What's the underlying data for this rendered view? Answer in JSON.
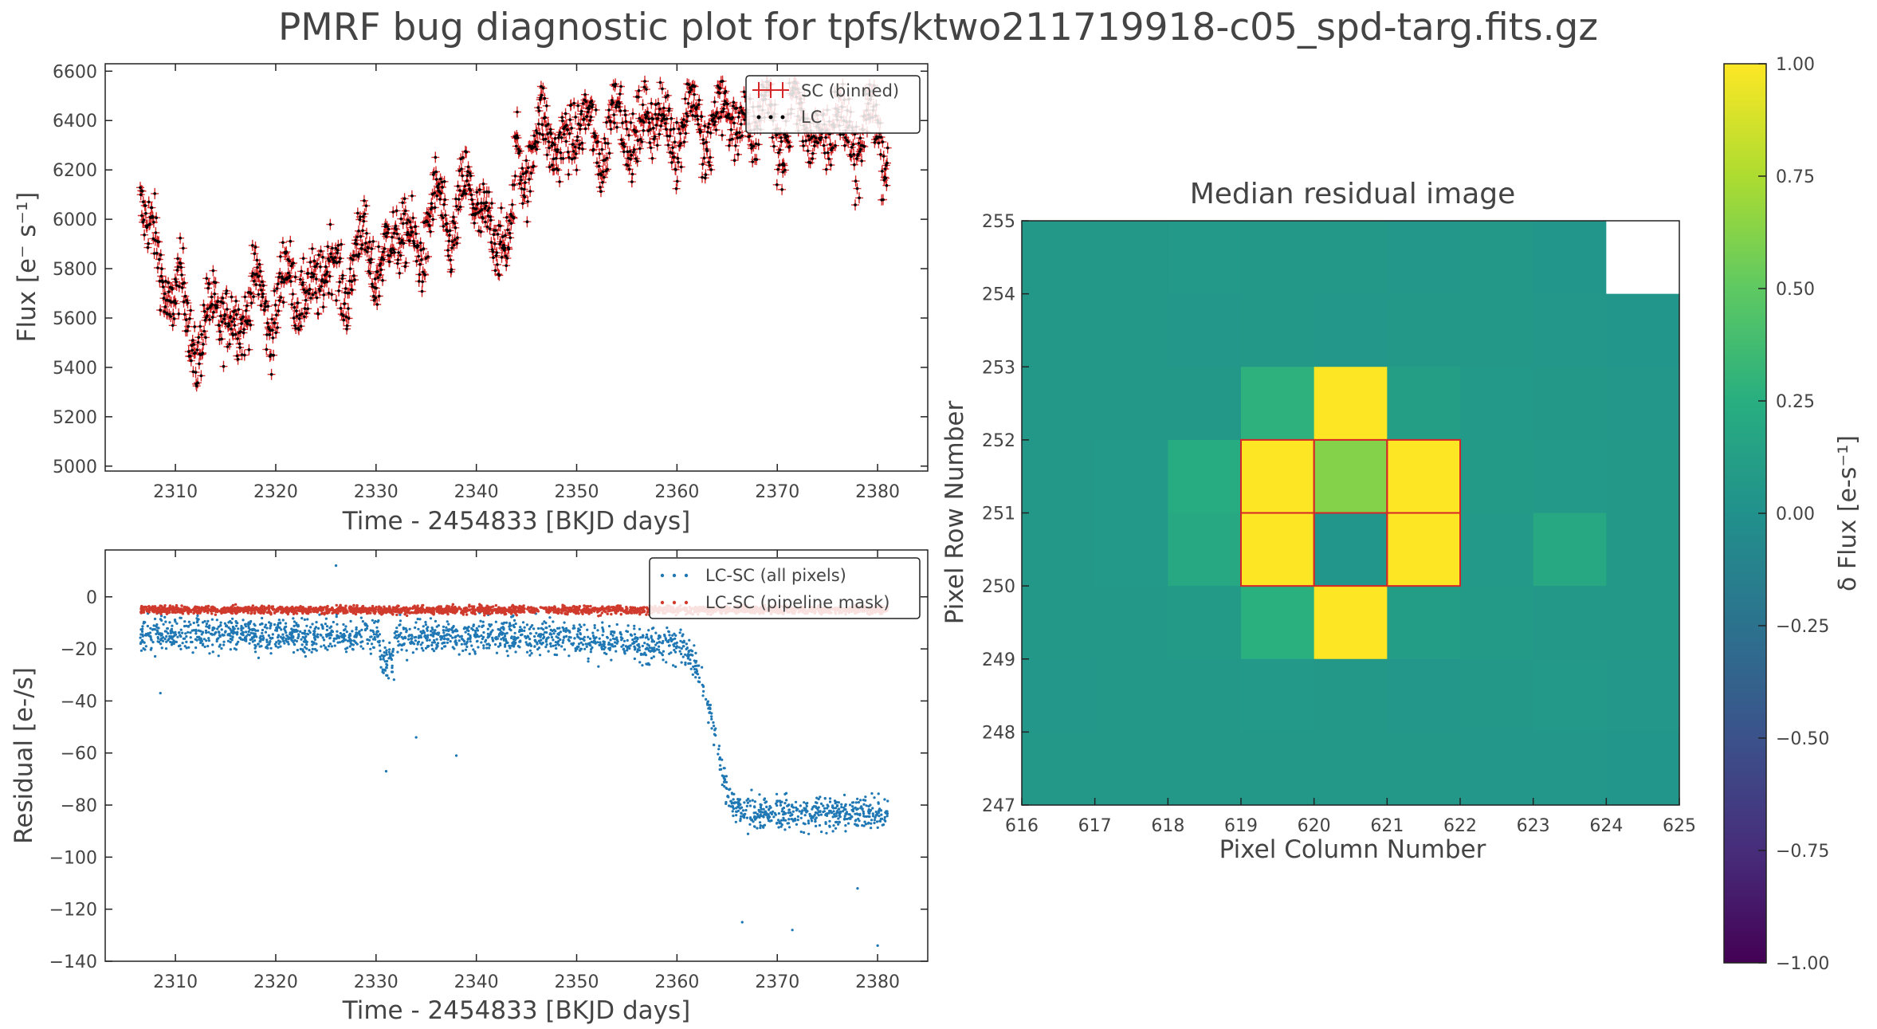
{
  "figure": {
    "title": "PMRF bug diagnostic plot for tpfs/ktwo211719918-c05_spd-targ.fits.gz"
  },
  "colors": {
    "sc": "#d62728",
    "lc": "#000000",
    "all_pixels": "#1f77b4",
    "pipeline": "#d03a2c",
    "text": "#444444",
    "mask_outline": "#d62728"
  },
  "chart_data": [
    {
      "id": "flux",
      "type": "scatter",
      "title": "",
      "xlabel": "Time - 2454833 [BKJD days]",
      "ylabel": "Flux [e⁻ s⁻¹]",
      "xlim": [
        2303,
        2385
      ],
      "ylim": [
        4980,
        6630
      ],
      "xticks": [
        2310,
        2320,
        2330,
        2340,
        2350,
        2360,
        2370,
        2380
      ],
      "yticks": [
        5000,
        5200,
        5400,
        5600,
        5800,
        6000,
        6200,
        6400,
        6600
      ],
      "legend": [
        "SC (binned)",
        "LC"
      ],
      "legend_loc": "upper right",
      "trend": {
        "x": [
          2306.5,
          2308,
          2310,
          2312,
          2315,
          2318,
          2321,
          2325,
          2330,
          2335,
          2339,
          2342,
          2343.5,
          2344,
          2348,
          2352,
          2356,
          2360,
          2365,
          2370,
          2375,
          2381
        ],
        "y": [
          6050,
          5900,
          5650,
          5550,
          5600,
          5650,
          5700,
          5760,
          5860,
          5950,
          6080,
          5980,
          5800,
          6280,
          6330,
          6350,
          6380,
          6390,
          6400,
          6400,
          6370,
          6330
        ]
      }
    },
    {
      "id": "residual",
      "type": "scatter",
      "title": "",
      "xlabel": "Time - 2454833 [BKJD days]",
      "ylabel": "Residual [e-/s]",
      "xlim": [
        2303,
        2385
      ],
      "ylim": [
        -140,
        18
      ],
      "xticks": [
        2310,
        2320,
        2330,
        2340,
        2350,
        2360,
        2370,
        2380
      ],
      "yticks": [
        0,
        -20,
        -40,
        -60,
        -80,
        -100,
        -120,
        -140
      ],
      "series": [
        {
          "name": "LC-SC (all pixels)",
          "x": [
            2306.5,
            2330,
            2345,
            2360,
            2361.5,
            2363,
            2364,
            2365,
            2366,
            2367,
            2381
          ],
          "y": [
            -14,
            -15,
            -15,
            -19,
            -22,
            -38,
            -58,
            -75,
            -82,
            -83,
            -83
          ]
        },
        {
          "name": "LC-SC (pipeline mask)",
          "x": [
            2306.5,
            2381
          ],
          "y": [
            -5,
            -5
          ]
        }
      ],
      "outliers": {
        "x": [
          2326,
          2331,
          2334,
          2338,
          2366.5,
          2371.5,
          2378,
          2380,
          2308.5
        ],
        "y": [
          12,
          -67,
          -54,
          -61,
          -125,
          -128,
          -112,
          -134,
          -37
        ]
      },
      "legend_loc": "upper right"
    },
    {
      "id": "residual-image",
      "type": "heatmap",
      "title": "Median residual image",
      "xlabel": "Pixel Column Number",
      "ylabel": "Pixel Row Number",
      "xlim": [
        616,
        625
      ],
      "ylim": [
        247,
        255
      ],
      "xticks": [
        616,
        617,
        618,
        619,
        620,
        621,
        622,
        623,
        624,
        625
      ],
      "yticks": [
        247,
        248,
        249,
        250,
        251,
        252,
        253,
        254,
        255
      ],
      "colormap": "viridis",
      "clim": [
        -1.0,
        1.0
      ],
      "colorbar_label": "δ Flux [e-s⁻¹]",
      "colorbar_ticks": [
        "1.00",
        "0.75",
        "0.50",
        "0.25",
        "0.00",
        "−0.25",
        "−0.50",
        "−0.75",
        "−1.00"
      ],
      "colorbar_tick_values": [
        1.0,
        0.75,
        0.5,
        0.25,
        0.0,
        -0.25,
        -0.5,
        -0.75,
        -1.0
      ],
      "rows_top_to_bottom": [
        254,
        253,
        252,
        251,
        250,
        249,
        248,
        247
      ],
      "columns": [
        616,
        617,
        618,
        619,
        620,
        621,
        622,
        623,
        624
      ],
      "values": [
        [
          0.06,
          0.06,
          0.07,
          0.06,
          0.06,
          0.05,
          0.06,
          0.04,
          null
        ],
        [
          0.06,
          0.06,
          0.05,
          0.06,
          0.05,
          0.06,
          0.06,
          0.05,
          0.04
        ],
        [
          0.06,
          0.06,
          0.06,
          0.28,
          1.15,
          0.12,
          0.07,
          0.06,
          0.05
        ],
        [
          0.06,
          0.07,
          0.22,
          1.15,
          0.62,
          1.15,
          0.08,
          0.07,
          0.06
        ],
        [
          0.06,
          0.07,
          0.2,
          1.15,
          0.04,
          1.15,
          0.07,
          0.2,
          0.06
        ],
        [
          0.06,
          0.06,
          0.08,
          0.26,
          1.15,
          0.1,
          0.08,
          0.06,
          0.06
        ],
        [
          0.05,
          0.06,
          0.06,
          0.07,
          0.06,
          0.05,
          0.06,
          0.07,
          0.05
        ],
        [
          0.06,
          0.06,
          0.06,
          0.06,
          0.06,
          0.06,
          0.05,
          0.05,
          0.04
        ]
      ],
      "pipeline_mask": [
        [
          619,
          251
        ],
        [
          620,
          251
        ],
        [
          621,
          251
        ],
        [
          619,
          250
        ],
        [
          620,
          250
        ],
        [
          621,
          250
        ]
      ]
    }
  ]
}
